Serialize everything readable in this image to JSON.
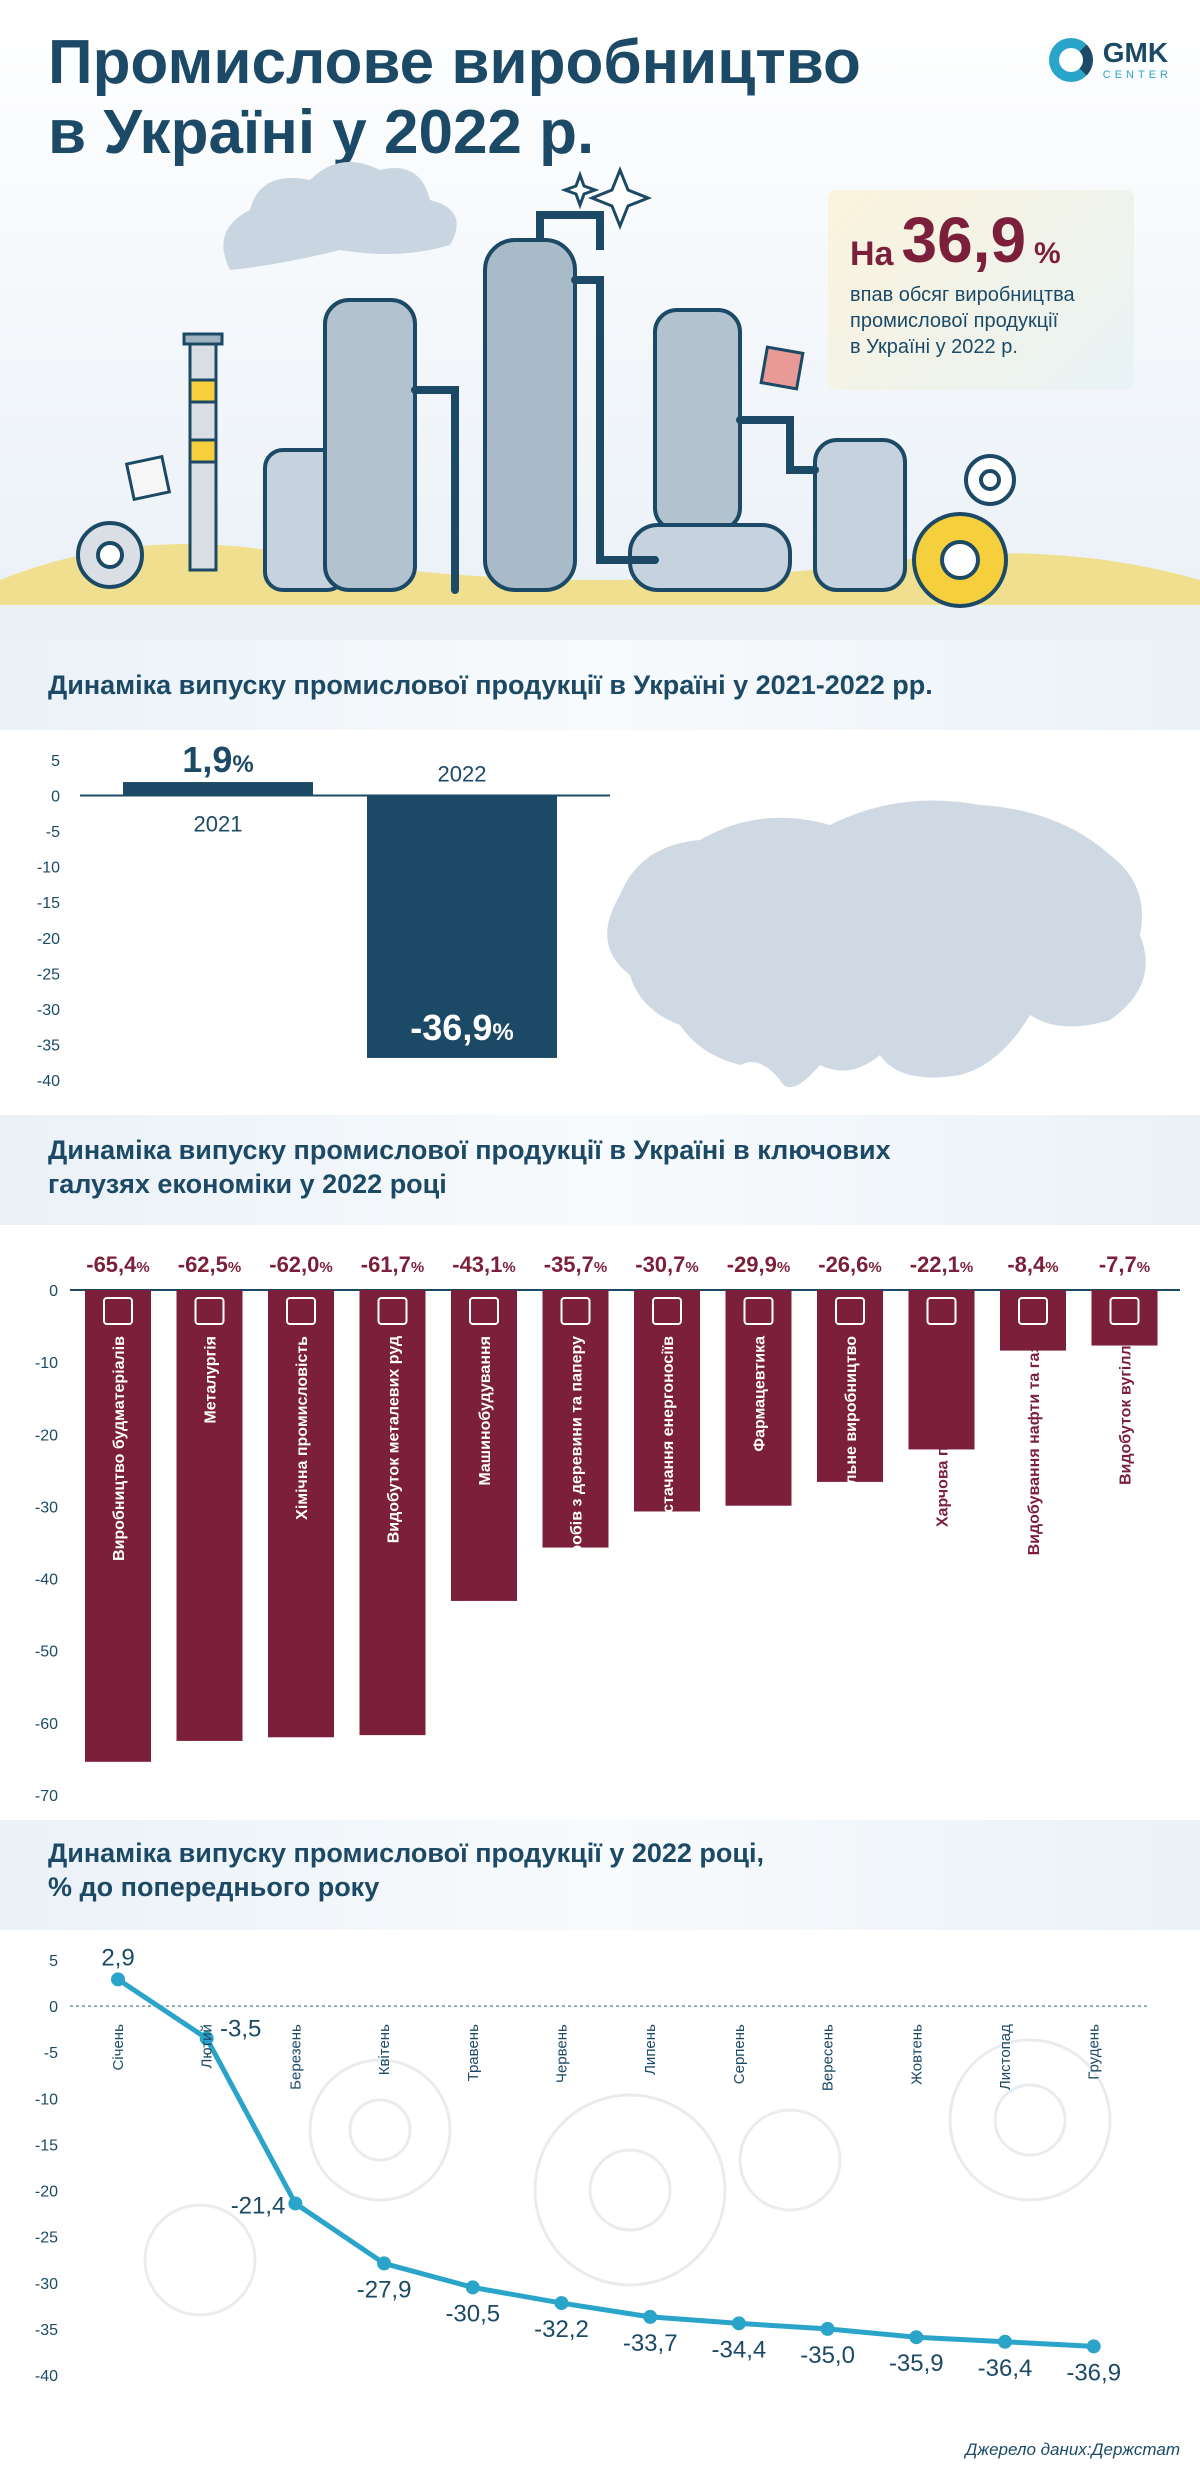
{
  "header": {
    "title_line1": "Промислове виробництво",
    "title_line2": "в Україні у 2022 р.",
    "logo_text": "GMK",
    "logo_sub": "CENTER"
  },
  "callout": {
    "prefix": "На",
    "value": "36,9",
    "unit": "%",
    "line1": "впав обсяг виробництва",
    "line2": "промислової продукції",
    "line3": "в Україні у 2022 р."
  },
  "colors": {
    "navy": "#1c4a66",
    "maroon": "#7b1f3a",
    "line": "#2ba4c9",
    "accent_yellow": "#f6cf3c"
  },
  "source": "Джерело даних:Держстат",
  "chart_data": [
    {
      "type": "bar",
      "title": "Динаміка випуску промислової продукції в Україні у 2021-2022 рр.",
      "categories": [
        "2021",
        "2022"
      ],
      "values": [
        1.9,
        -36.9
      ],
      "value_labels": [
        "1,9",
        "-36,9"
      ],
      "unit": "%",
      "ylim": [
        -40,
        5
      ],
      "yticks": [
        5,
        0,
        -5,
        -10,
        -15,
        -20,
        -25,
        -30,
        -35,
        -40
      ],
      "grid": false
    },
    {
      "type": "bar",
      "title": "Динаміка випуску промислової продукції в Україні в ключових галузях економіки у 2022 році",
      "categories": [
        "Виробництво будматеріалів",
        "Металургія",
        "Хімічна промисловість",
        "Видобуток металевих руд",
        "Машинобудування",
        "Виготовлення виробів з деревини та паперу",
        "Постачання енергоносіїв",
        "Фармацевтика",
        "Текстильне виробництво",
        "Харчова промисловість",
        "Видобування нафти та газу",
        "Видобуток вугілля"
      ],
      "values": [
        -65.4,
        -62.5,
        -62.0,
        -61.7,
        -43.1,
        -35.7,
        -30.7,
        -29.9,
        -26.6,
        -22.1,
        -8.4,
        -7.7
      ],
      "value_labels": [
        "-65,4",
        "-62,5",
        "-62,0",
        "-61,7",
        "-43,1",
        "-35,7",
        "-30,7",
        "-29,9",
        "-26,6",
        "-22,1",
        "-8,4",
        "-7,7"
      ],
      "unit": "%",
      "ylim": [
        -70,
        0
      ],
      "yticks": [
        0,
        -10,
        -20,
        -30,
        -40,
        -50,
        -60,
        -70
      ],
      "grid": false
    },
    {
      "type": "line",
      "title": "Динаміка випуску промислової продукції у 2022 році,",
      "subtitle": "% до попереднього року",
      "x": [
        "Січень",
        "Лютий",
        "Березень",
        "Квітень",
        "Травень",
        "Червень",
        "Липень",
        "Серпень",
        "Вересень",
        "Жовтень",
        "Листопад",
        "Грудень"
      ],
      "values": [
        2.9,
        -3.5,
        -21.4,
        -27.9,
        -30.5,
        -32.2,
        -33.7,
        -34.4,
        -35.0,
        -35.9,
        -36.4,
        -36.9
      ],
      "value_labels": [
        "2,9",
        "-3,5",
        "-21,4",
        "-27,9",
        "-30,5",
        "-32,2",
        "-33,7",
        "-34,4",
        "-35,0",
        "-35,9",
        "-36,4",
        "-36,9"
      ],
      "ylim": [
        -40,
        5
      ],
      "yticks": [
        5,
        0,
        -5,
        -10,
        -15,
        -20,
        -25,
        -30,
        -35,
        -40
      ],
      "grid": false
    }
  ]
}
